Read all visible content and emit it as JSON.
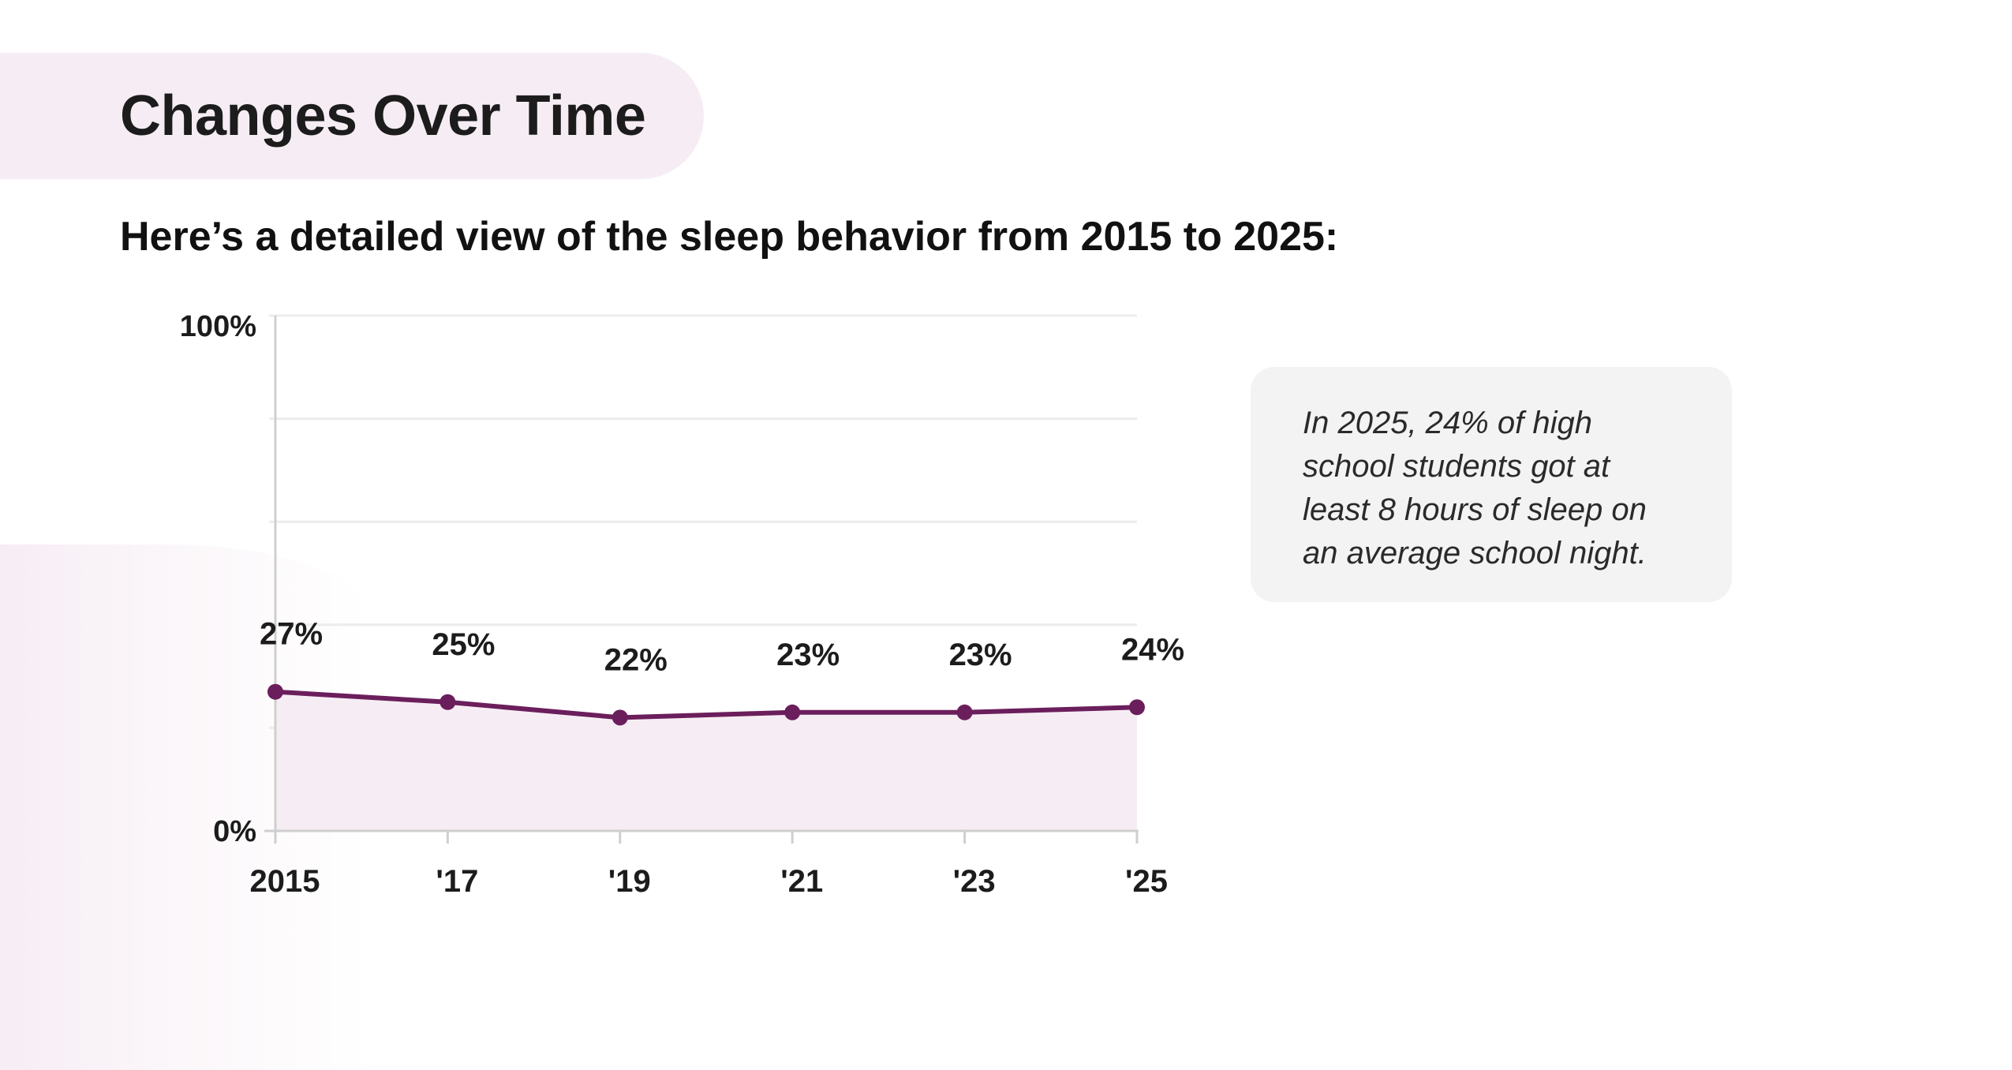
{
  "header": {
    "title": "Changes Over Time",
    "subtitle": "Here’s a detailed view of the sleep behavior from 2015 to 2025:"
  },
  "callout": {
    "text": "In 2025, 24% of high school students got at least 8 hours of sleep on an average school night."
  },
  "colors": {
    "accent": "#6b1e5c",
    "fill": "#f6edf4",
    "pill": "#f6edf4"
  },
  "chart_data": {
    "type": "line",
    "categories": [
      "2015",
      "'17",
      "'19",
      "'21",
      "'23",
      "'25"
    ],
    "values": [
      27,
      25,
      22,
      23,
      23,
      24
    ],
    "data_labels": [
      "27%",
      "25%",
      "22%",
      "23%",
      "23%",
      "24%"
    ],
    "y_tick_labels": [
      "100%",
      "0%"
    ],
    "ylim": [
      0,
      100
    ],
    "grid": true,
    "area_fill": true
  }
}
